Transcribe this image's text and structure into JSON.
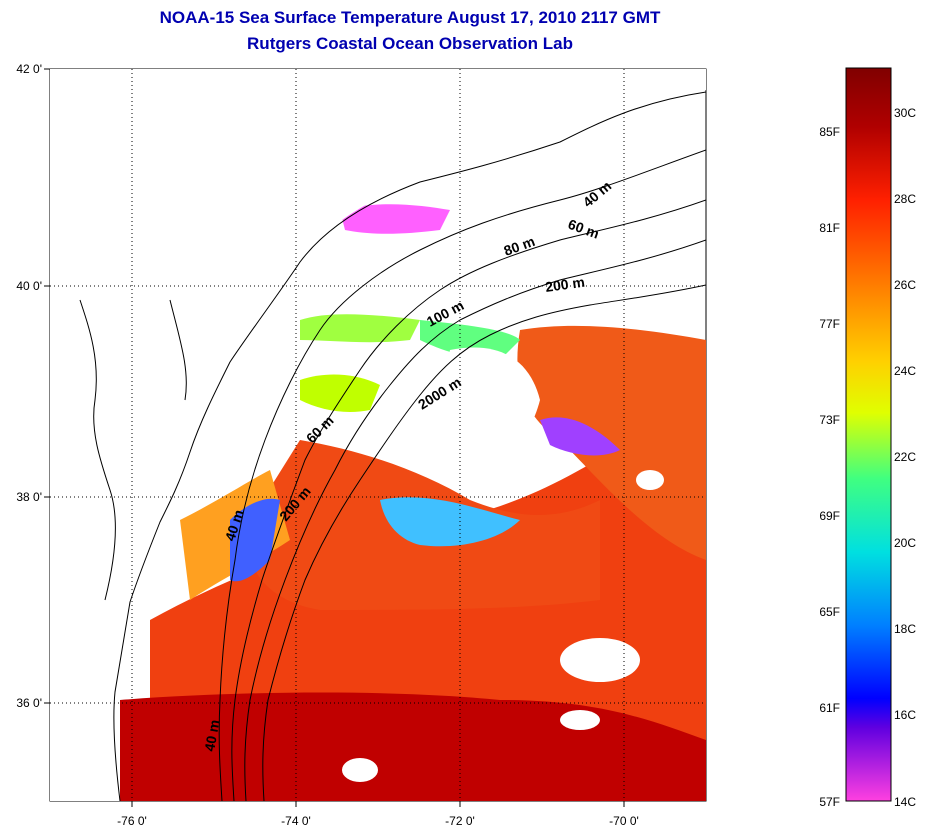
{
  "header": {
    "title_line1": "NOAA-15 Sea Surface Temperature August 17, 2010 2117 GMT",
    "title_line2": "Rutgers Coastal Ocean Observation Lab"
  },
  "map": {
    "lat_ticks": [
      "42 0'",
      "40 0'",
      "38 0'",
      "36 0'"
    ],
    "lon_ticks": [
      "-76 0'",
      "-74 0'",
      "-72 0'",
      "-70 0'"
    ],
    "depth_labels": [
      "40 m",
      "60 m",
      "80 m",
      "200 m",
      "100 m",
      "2000 m",
      "60 m",
      "200 m",
      "40 m",
      "40 m"
    ]
  },
  "colorbar": {
    "fahrenheit_labels": [
      "85F",
      "81F",
      "77F",
      "73F",
      "69F",
      "65F",
      "61F",
      "57F"
    ],
    "celsius_labels": [
      "30C",
      "28C",
      "26C",
      "24C",
      "22C",
      "20C",
      "18C",
      "16C",
      "14C"
    ],
    "colors": [
      "#8b0000",
      "#d40000",
      "#ff3000",
      "#ff7800",
      "#ffb000",
      "#ffff00",
      "#80ff40",
      "#00ffc0",
      "#00c0ff",
      "#0060ff",
      "#0000ff",
      "#8000ff",
      "#ff40ff"
    ]
  }
}
